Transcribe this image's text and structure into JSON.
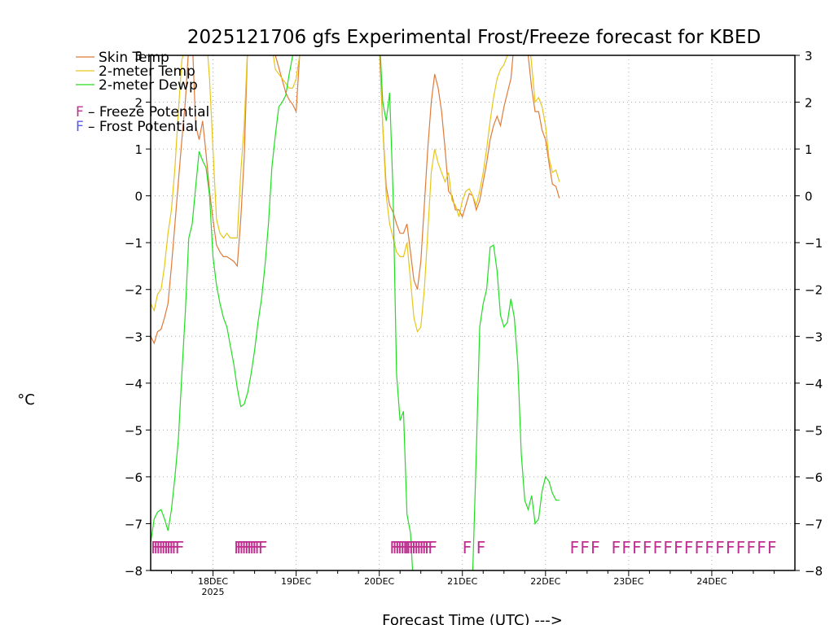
{
  "chart_data": {
    "type": "line",
    "title": "2025121706 gfs Experimental Frost/Freeze forecast for KBED",
    "ylabel": "°C",
    "xlabel": "Forecast Time (UTC) --->",
    "ylim": [
      -8,
      3
    ],
    "xlim": [
      0,
      186
    ],
    "y_ticks": [
      -8,
      -7,
      -6,
      -5,
      -4,
      -3,
      -2,
      -1,
      0,
      1,
      2,
      3
    ],
    "grid": true,
    "x_tick_labels": [
      {
        "hour": 18,
        "label": "18DEC",
        "sub": "2025"
      },
      {
        "hour": 42,
        "label": "19DEC",
        "sub": ""
      },
      {
        "hour": 66,
        "label": "20DEC",
        "sub": ""
      },
      {
        "hour": 90,
        "label": "21DEC",
        "sub": ""
      },
      {
        "hour": 114,
        "label": "22DEC",
        "sub": ""
      },
      {
        "hour": 138,
        "label": "23DEC",
        "sub": ""
      },
      {
        "hour": 162,
        "label": "24DEC",
        "sub": ""
      }
    ],
    "legend": {
      "placement": "top-left",
      "series_entries": [
        {
          "label": "Skin Temp",
          "color": "#e07b39"
        },
        {
          "label": "2-meter Temp",
          "color": "#e6c619"
        },
        {
          "label": "2-meter Dewp",
          "color": "#22dd22"
        }
      ],
      "symbol_entries": [
        {
          "letter": "F",
          "label": " – Freeze Potential",
          "color": "#c0308f"
        },
        {
          "letter": "F",
          "label": " – Frost Potential",
          "color": "#5a5aee"
        }
      ]
    },
    "series": [
      {
        "name": "Skin Temp",
        "color": "#e07b39",
        "x": [
          0,
          1,
          2,
          3,
          4,
          5,
          6,
          7,
          8,
          9,
          10,
          11,
          12,
          13,
          14,
          15,
          16,
          17,
          18,
          19,
          20,
          21,
          22,
          23,
          24,
          25,
          26,
          27,
          28,
          29,
          30,
          31,
          32,
          33,
          34,
          35,
          36,
          39,
          40,
          41,
          42,
          43,
          44,
          45,
          66,
          67,
          68,
          69,
          70,
          71,
          72,
          73,
          74,
          75,
          76,
          77,
          78,
          79,
          80,
          81,
          82,
          83,
          84,
          85,
          86,
          87,
          88,
          89,
          90,
          91,
          92,
          93,
          94,
          95,
          96,
          97,
          98,
          99,
          100,
          101,
          102,
          103,
          104,
          105,
          106,
          107,
          108,
          109,
          110,
          111,
          112,
          113,
          114,
          115,
          116,
          117,
          118
        ],
        "values": [
          -3.0,
          -3.15,
          -2.9,
          -2.85,
          -2.6,
          -2.3,
          -1.5,
          -0.6,
          0.3,
          1.2,
          2.0,
          3.2,
          3.4,
          1.5,
          1.2,
          1.6,
          0.9,
          0.1,
          -0.5,
          -1.05,
          -1.2,
          -1.3,
          -1.3,
          -1.35,
          -1.4,
          -1.5,
          -0.5,
          0.8,
          3.2,
          3.5,
          3.5,
          3.5,
          3.5,
          3.5,
          3.5,
          3.3,
          3.0,
          2.2,
          2.05,
          1.95,
          1.8,
          3.0,
          3.4,
          3.5,
          3.2,
          1.5,
          0.2,
          -0.2,
          -0.35,
          -0.6,
          -0.8,
          -0.8,
          -0.6,
          -1.2,
          -1.8,
          -2.0,
          -1.4,
          -0.2,
          1.0,
          2.0,
          2.6,
          2.3,
          1.8,
          1.0,
          0.1,
          0.0,
          -0.3,
          -0.3,
          -0.45,
          -0.2,
          0.05,
          0.0,
          -0.3,
          -0.1,
          0.3,
          0.7,
          1.2,
          1.5,
          1.7,
          1.5,
          1.9,
          2.2,
          2.5,
          3.3,
          3.5,
          3.5,
          3.5,
          3.0,
          2.3,
          1.8,
          1.8,
          1.4,
          1.2,
          0.7,
          0.25,
          0.2,
          -0.05
        ]
      },
      {
        "name": "2-meter Temp",
        "color": "#e6c619",
        "x": [
          0,
          1,
          2,
          3,
          4,
          5,
          6,
          7,
          8,
          9,
          10,
          11,
          12,
          13,
          14,
          15,
          16,
          17,
          18,
          19,
          20,
          21,
          22,
          23,
          24,
          25,
          26,
          27,
          28,
          29,
          30,
          31,
          32,
          33,
          34,
          35,
          36,
          39,
          40,
          41,
          42,
          43,
          44,
          45,
          66,
          67,
          68,
          69,
          70,
          71,
          72,
          73,
          74,
          75,
          76,
          77,
          78,
          79,
          80,
          81,
          82,
          83,
          84,
          85,
          86,
          87,
          88,
          89,
          90,
          91,
          92,
          93,
          94,
          95,
          96,
          97,
          98,
          99,
          100,
          101,
          102,
          103,
          104,
          105,
          106,
          107,
          108,
          109,
          110,
          111,
          112,
          113,
          114,
          115,
          116,
          117,
          118
        ],
        "values": [
          -2.3,
          -2.45,
          -2.1,
          -2.0,
          -1.5,
          -0.8,
          -0.3,
          0.6,
          1.8,
          2.9,
          3.2,
          3.5,
          3.5,
          3.5,
          3.5,
          3.5,
          3.5,
          2.5,
          1.0,
          -0.5,
          -0.8,
          -0.9,
          -0.8,
          -0.9,
          -0.9,
          -0.9,
          0.5,
          1.5,
          3.2,
          3.5,
          3.5,
          3.5,
          3.5,
          3.5,
          3.5,
          3.2,
          2.7,
          2.4,
          2.3,
          2.3,
          2.5,
          3.0,
          3.4,
          3.5,
          3.5,
          1.5,
          0.0,
          -0.6,
          -0.9,
          -1.2,
          -1.3,
          -1.3,
          -1.0,
          -1.8,
          -2.6,
          -2.9,
          -2.8,
          -2.0,
          -0.8,
          0.5,
          1.0,
          0.7,
          0.5,
          0.3,
          0.5,
          -0.1,
          -0.2,
          -0.45,
          -0.1,
          0.1,
          0.15,
          0.0,
          -0.2,
          0.1,
          0.5,
          1.0,
          1.6,
          2.1,
          2.5,
          2.7,
          2.8,
          3.0,
          3.3,
          3.5,
          3.5,
          3.5,
          3.5,
          3.5,
          2.8,
          2.0,
          2.1,
          1.9,
          1.5,
          0.8,
          0.5,
          0.55,
          0.3
        ]
      },
      {
        "name": "2-meter Dewp",
        "color": "#22dd22",
        "x": [
          0,
          1,
          2,
          3,
          4,
          5,
          6,
          7,
          8,
          9,
          10,
          11,
          12,
          13,
          14,
          15,
          16,
          17,
          18,
          19,
          20,
          21,
          22,
          23,
          24,
          25,
          26,
          27,
          28,
          29,
          30,
          31,
          32,
          33,
          34,
          35,
          36,
          37,
          38,
          39,
          40,
          41,
          42,
          43,
          44,
          45,
          66,
          67,
          68,
          69,
          70,
          71,
          72,
          73,
          74,
          75,
          76,
          77,
          78,
          79,
          80,
          81,
          82,
          83,
          84,
          85,
          86,
          87,
          88,
          89,
          90,
          91,
          92,
          93,
          94,
          95,
          96,
          97,
          98,
          99,
          100,
          101,
          102,
          103,
          104,
          105,
          106,
          107,
          108,
          109,
          110,
          111,
          112,
          113,
          114,
          115,
          116,
          117,
          118
        ],
        "values": [
          -7.4,
          -6.9,
          -6.75,
          -6.7,
          -6.9,
          -7.15,
          -6.7,
          -6.0,
          -5.2,
          -3.8,
          -2.5,
          -0.9,
          -0.6,
          0.2,
          0.95,
          0.75,
          0.6,
          0.0,
          -1.3,
          -1.9,
          -2.3,
          -2.6,
          -2.8,
          -3.2,
          -3.6,
          -4.1,
          -4.5,
          -4.45,
          -4.2,
          -3.8,
          -3.3,
          -2.7,
          -2.2,
          -1.5,
          -0.6,
          0.6,
          1.3,
          1.9,
          2.0,
          2.15,
          2.6,
          3.0,
          3.5,
          3.5,
          3.5,
          3.5,
          3.5,
          2.0,
          1.6,
          2.2,
          0.0,
          -3.8,
          -4.8,
          -4.6,
          -6.8,
          -7.2,
          -8.5,
          -8.5,
          -8.5,
          -8.5,
          -8.5,
          -8.5,
          -8.5,
          -8.5,
          -8.5,
          -8.5,
          -8.5,
          -8.5,
          -8.5,
          -8.5,
          -8.5,
          -8.5,
          -8.5,
          -8.0,
          -5.5,
          -2.8,
          -2.3,
          -2.0,
          -1.1,
          -1.05,
          -1.6,
          -2.55,
          -2.8,
          -2.7,
          -2.2,
          -2.6,
          -3.6,
          -5.5,
          -6.5,
          -6.7,
          -6.4,
          -7.0,
          -6.9,
          -6.3,
          -6.0,
          -6.1,
          -6.35,
          -6.5,
          -6.5
        ]
      }
    ],
    "symbols": {
      "letter": "F",
      "y_value": -7.5,
      "freeze_color": "#c0308f",
      "frost_color": "#5a5aee",
      "freeze_hours": [
        0,
        0.75,
        1.5,
        2.25,
        3,
        3.75,
        4.5,
        5.25,
        6,
        7,
        24,
        24.75,
        25.5,
        26.25,
        27,
        27.75,
        28.5,
        29.25,
        30,
        31,
        69,
        69.75,
        70.5,
        71.25,
        72,
        72.75,
        73.25,
        73.75,
        74.5,
        75.25,
        76,
        76.75,
        77.5,
        78.25,
        79,
        80,
        90,
        94,
        121,
        124,
        127,
        133,
        136,
        139,
        142,
        145,
        148,
        151,
        154,
        157,
        160,
        163,
        166,
        169,
        172,
        175,
        178
      ]
    }
  }
}
